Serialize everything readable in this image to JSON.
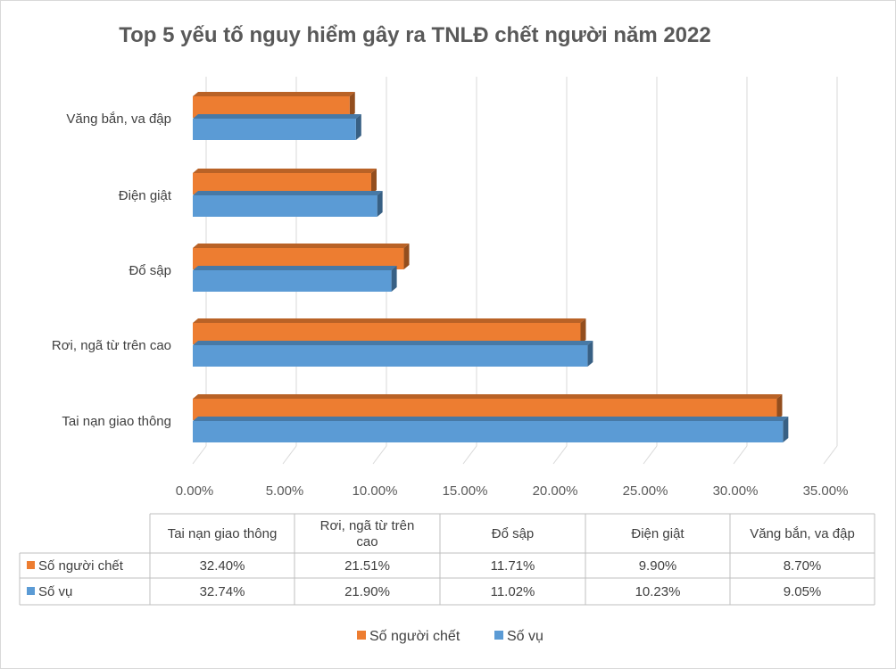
{
  "chart_data": {
    "type": "bar",
    "orientation": "horizontal",
    "title": "Top 5 yếu tố nguy hiểm gây ra TNLĐ chết người năm 2022",
    "categories": [
      "Tai nạn giao thông",
      "Rơi, ngã từ trên cao",
      "Đổ sập",
      "Điện giật",
      "Văng bắn, va đập"
    ],
    "category_label_lines": [
      [
        "Tai nạn giao thông"
      ],
      [
        "Rơi, ngã từ trên cao"
      ],
      [
        "Đổ sập"
      ],
      [
        "Điện giật"
      ],
      [
        "Văng bắn, va đập"
      ]
    ],
    "table_header_lines": [
      [
        "Tai nạn giao thông"
      ],
      [
        "Rơi, ngã từ trên",
        "cao"
      ],
      [
        "Đổ sập"
      ],
      [
        "Điện giật"
      ],
      [
        "Văng bắn, va đập"
      ]
    ],
    "series": [
      {
        "name": "Số người chết",
        "values": [
          32.4,
          21.51,
          11.71,
          9.9,
          8.7
        ],
        "labels": [
          "32.40%",
          "21.51%",
          "11.71%",
          "9.90%",
          "8.70%"
        ],
        "color": "#ED7D31"
      },
      {
        "name": "Số vụ",
        "values": [
          32.74,
          21.9,
          11.02,
          10.23,
          9.05
        ],
        "labels": [
          "32.74%",
          "21.90%",
          "11.02%",
          "10.23%",
          "9.05%"
        ],
        "color": "#5B9BD5"
      }
    ],
    "x_ticks": [
      "0.00%",
      "5.00%",
      "10.00%",
      "15.00%",
      "20.00%",
      "25.00%",
      "30.00%",
      "35.00%"
    ],
    "xlim": [
      0,
      35
    ],
    "grid": true,
    "style": "3d",
    "data_table": true,
    "legend_position": "bottom"
  }
}
